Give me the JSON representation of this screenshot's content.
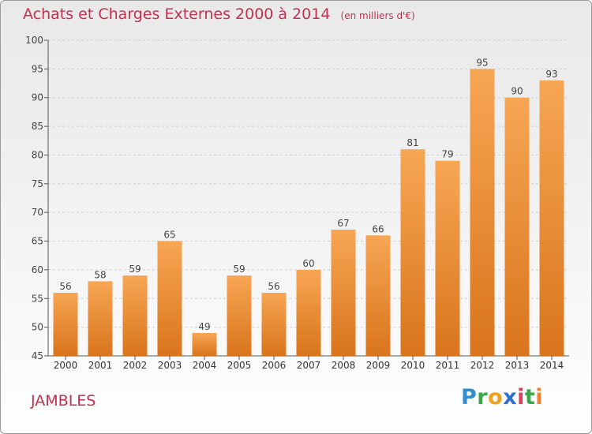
{
  "title": "Achats et Charges Externes 2000 à 2014",
  "unit": "(en milliers d'€)",
  "commune": "JAMBLES",
  "brand": {
    "letters": [
      "P",
      "r",
      "o",
      "x",
      "i",
      "t",
      "i"
    ],
    "colors": [
      "#2f8fd0",
      "#3aa64a",
      "#f0a020",
      "#2f6fd0",
      "#e04060",
      "#3aa64a",
      "#f08030"
    ]
  },
  "colors": {
    "bar_top": "#f7a654",
    "bar_bottom": "#d9751c",
    "title": "#c0314f",
    "grid": "#cfcfcf",
    "axis": "#555555"
  },
  "chart_data": {
    "type": "bar",
    "title": "Achats et Charges Externes 2000 à 2014",
    "subtitle": "(en milliers d'€)",
    "categories": [
      "2000",
      "2001",
      "2002",
      "2003",
      "2004",
      "2005",
      "2006",
      "2007",
      "2008",
      "2009",
      "2010",
      "2011",
      "2012",
      "2013",
      "2014"
    ],
    "values": [
      56,
      58,
      59,
      65,
      49,
      59,
      56,
      60,
      67,
      66,
      81,
      79,
      95,
      90,
      93
    ],
    "ylim": [
      45,
      100
    ],
    "yticks": [
      45,
      50,
      55,
      60,
      65,
      70,
      75,
      80,
      85,
      90,
      95,
      100
    ],
    "grid": true,
    "xlabel": "",
    "ylabel": ""
  }
}
